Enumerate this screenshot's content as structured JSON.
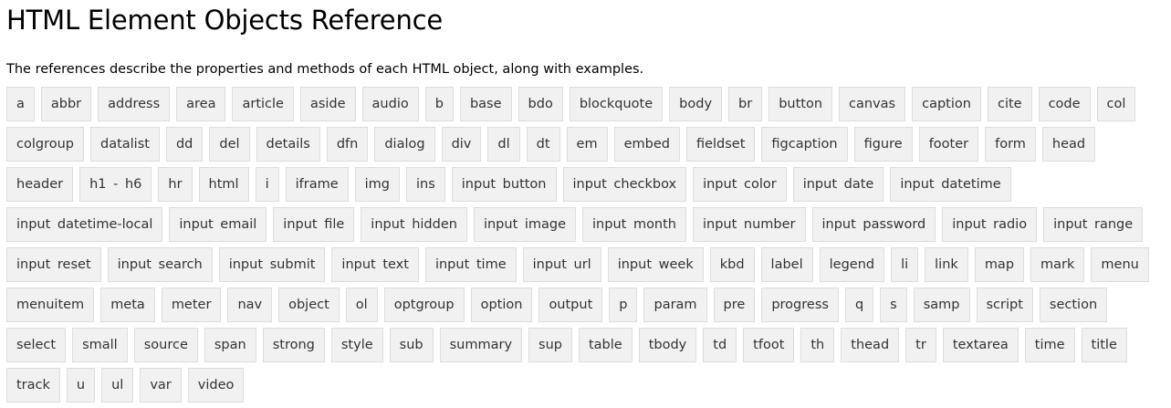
{
  "page": {
    "title": "HTML Element Objects Reference",
    "description": "The references describe the properties and methods of each HTML object, along with examples."
  },
  "tags": [
    "a",
    "abbr",
    "address",
    "area",
    "article",
    "aside",
    "audio",
    "b",
    "base",
    "bdo",
    "blockquote",
    "body",
    "br",
    "button",
    "canvas",
    "caption",
    "cite",
    "code",
    "col",
    "colgroup",
    "datalist",
    "dd",
    "del",
    "details",
    "dfn",
    "dialog",
    "div",
    "dl",
    "dt",
    "em",
    "embed",
    "fieldset",
    "figcaption",
    "figure",
    "footer",
    "form",
    "head",
    "header",
    "h1 - h6",
    "hr",
    "html",
    "i",
    "iframe",
    "img",
    "ins",
    "input button",
    "input checkbox",
    "input color",
    "input date",
    "input datetime",
    "input datetime-local",
    "input email",
    "input file",
    "input hidden",
    "input image",
    "input month",
    "input number",
    "input password",
    "input radio",
    "input range",
    "input reset",
    "input search",
    "input submit",
    "input text",
    "input time",
    "input url",
    "input week",
    "kbd",
    "label",
    "legend",
    "li",
    "link",
    "map",
    "mark",
    "menu",
    "menuitem",
    "meta",
    "meter",
    "nav",
    "object",
    "ol",
    "optgroup",
    "option",
    "output",
    "p",
    "param",
    "pre",
    "progress",
    "q",
    "s",
    "samp",
    "script",
    "section",
    "select",
    "small",
    "source",
    "span",
    "strong",
    "style",
    "sub",
    "summary",
    "sup",
    "table",
    "tbody",
    "td",
    "tfoot",
    "th",
    "thead",
    "tr",
    "textarea",
    "time",
    "title",
    "track",
    "u",
    "ul",
    "var",
    "video"
  ]
}
